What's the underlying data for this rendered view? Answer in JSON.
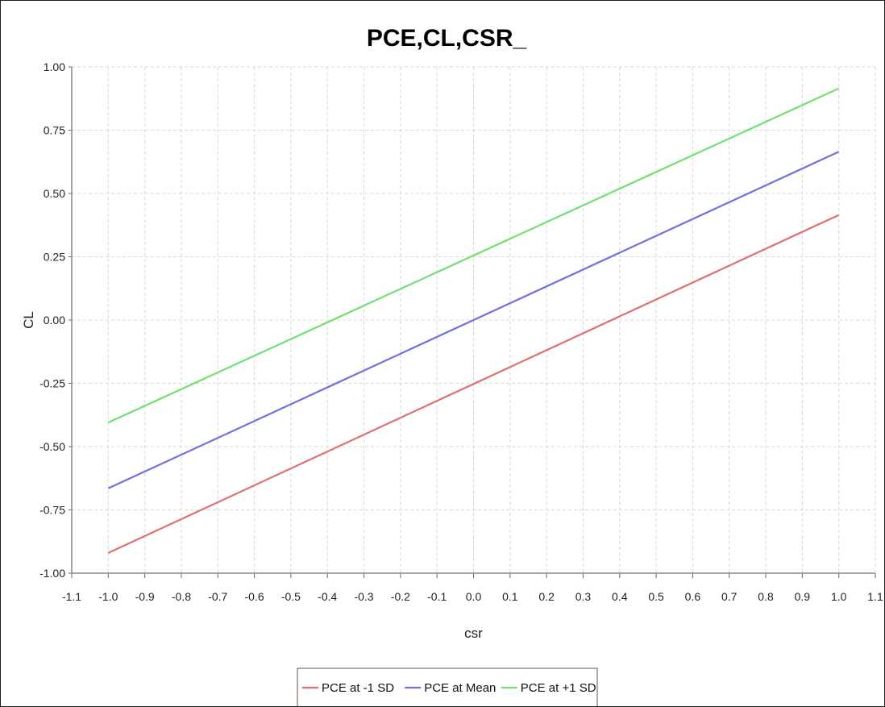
{
  "chart_data": {
    "type": "line",
    "title": "PCE,CL,CSR_",
    "xlabel": "csr",
    "ylabel": "CL",
    "xlim": [
      -1.1,
      1.1
    ],
    "ylim": [
      -1.0,
      1.0
    ],
    "x_ticks": [
      "-1.1",
      "-1.0",
      "-0.9",
      "-0.8",
      "-0.7",
      "-0.6",
      "-0.5",
      "-0.4",
      "-0.3",
      "-0.2",
      "-0.1",
      "0.0",
      "0.1",
      "0.2",
      "0.3",
      "0.4",
      "0.5",
      "0.6",
      "0.7",
      "0.8",
      "0.9",
      "1.0",
      "1.1"
    ],
    "y_ticks": [
      "1.00",
      "0.75",
      "0.50",
      "0.25",
      "0.00",
      "-0.25",
      "-0.50",
      "-0.75",
      "-1.00"
    ],
    "grid": true,
    "legend_position": "bottom",
    "series": [
      {
        "name": "PCE at -1 SD",
        "color": "#e07070",
        "x": [
          -1.0,
          1.0
        ],
        "y": [
          -0.92,
          0.415
        ]
      },
      {
        "name": "PCE at Mean",
        "color": "#7070e0",
        "x": [
          -1.0,
          1.0
        ],
        "y": [
          -0.665,
          0.665
        ]
      },
      {
        "name": "PCE at +1 SD",
        "color": "#70e070",
        "x": [
          -1.0,
          1.0
        ],
        "y": [
          -0.405,
          0.915
        ]
      }
    ]
  }
}
